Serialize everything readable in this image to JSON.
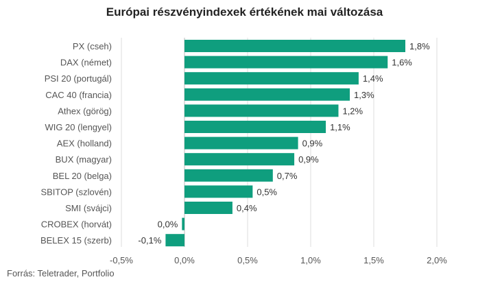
{
  "chart_data": {
    "type": "bar",
    "orientation": "horizontal",
    "title": "Európai részvényindexek értékének mai változása",
    "categories": [
      "PX (cseh)",
      "DAX (német)",
      "PSI 20 (portugál)",
      "CAC 40 (francia)",
      "Athex (görög)",
      "WIG 20 (lengyel)",
      "AEX (holland)",
      "BUX (magyar)",
      "BEL 20 (belga)",
      "SBITOP (szlovén)",
      "SMI (svájci)",
      "CROBEX (horvát)",
      "BELEX 15 (szerb)"
    ],
    "values": [
      1.75,
      1.61,
      1.38,
      1.31,
      1.22,
      1.12,
      0.9,
      0.87,
      0.7,
      0.54,
      0.38,
      -0.02,
      -0.15
    ],
    "value_labels": [
      "1,8%",
      "1,6%",
      "1,4%",
      "1,3%",
      "1,2%",
      "1,1%",
      "0,9%",
      "0,9%",
      "0,7%",
      "0,5%",
      "0,4%",
      "0,0%",
      "-0,1%"
    ],
    "xlim": [
      -0.5,
      2.0
    ],
    "x_ticks": [
      -0.5,
      0,
      0.5,
      1.0,
      1.5,
      2.0
    ],
    "x_tick_labels": [
      "-0,5%",
      "0,0%",
      "0,5%",
      "1,0%",
      "1,5%",
      "2,0%"
    ],
    "xlabel": "",
    "ylabel": "",
    "grid": true,
    "legend": "none",
    "bar_color": "#0f9e7e",
    "grid_color": "#dddddd"
  },
  "footer": {
    "source": "Forrás: Teletrader, Portfolio"
  }
}
